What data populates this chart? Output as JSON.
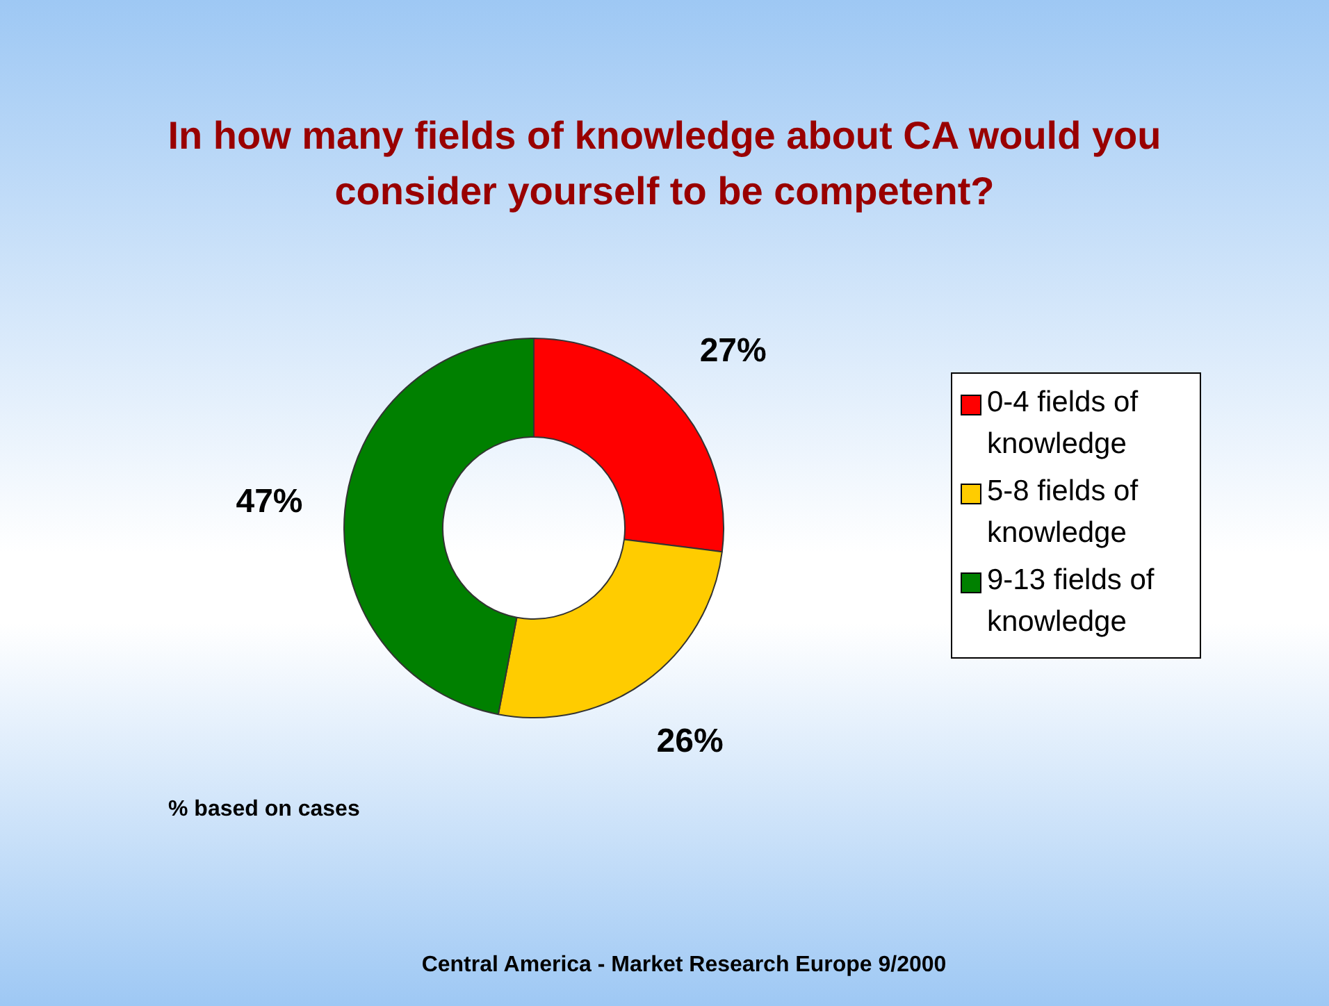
{
  "chart_data": {
    "type": "donut",
    "title": "In how many fields of knowledge about CA would you consider yourself to be competent?",
    "categories": [
      "0-4 fields of knowledge",
      "5-8 fields of knowledge",
      "9-13 fields of knowledge"
    ],
    "values": [
      27,
      26,
      47
    ],
    "colors": [
      "#ff0000",
      "#ffcc00",
      "#008000"
    ],
    "value_labels": [
      "27%",
      "26%",
      "47%"
    ],
    "legend": "right",
    "annotations": [
      "% based on cases",
      "Central America - Market Research Europe 9/2000"
    ]
  }
}
